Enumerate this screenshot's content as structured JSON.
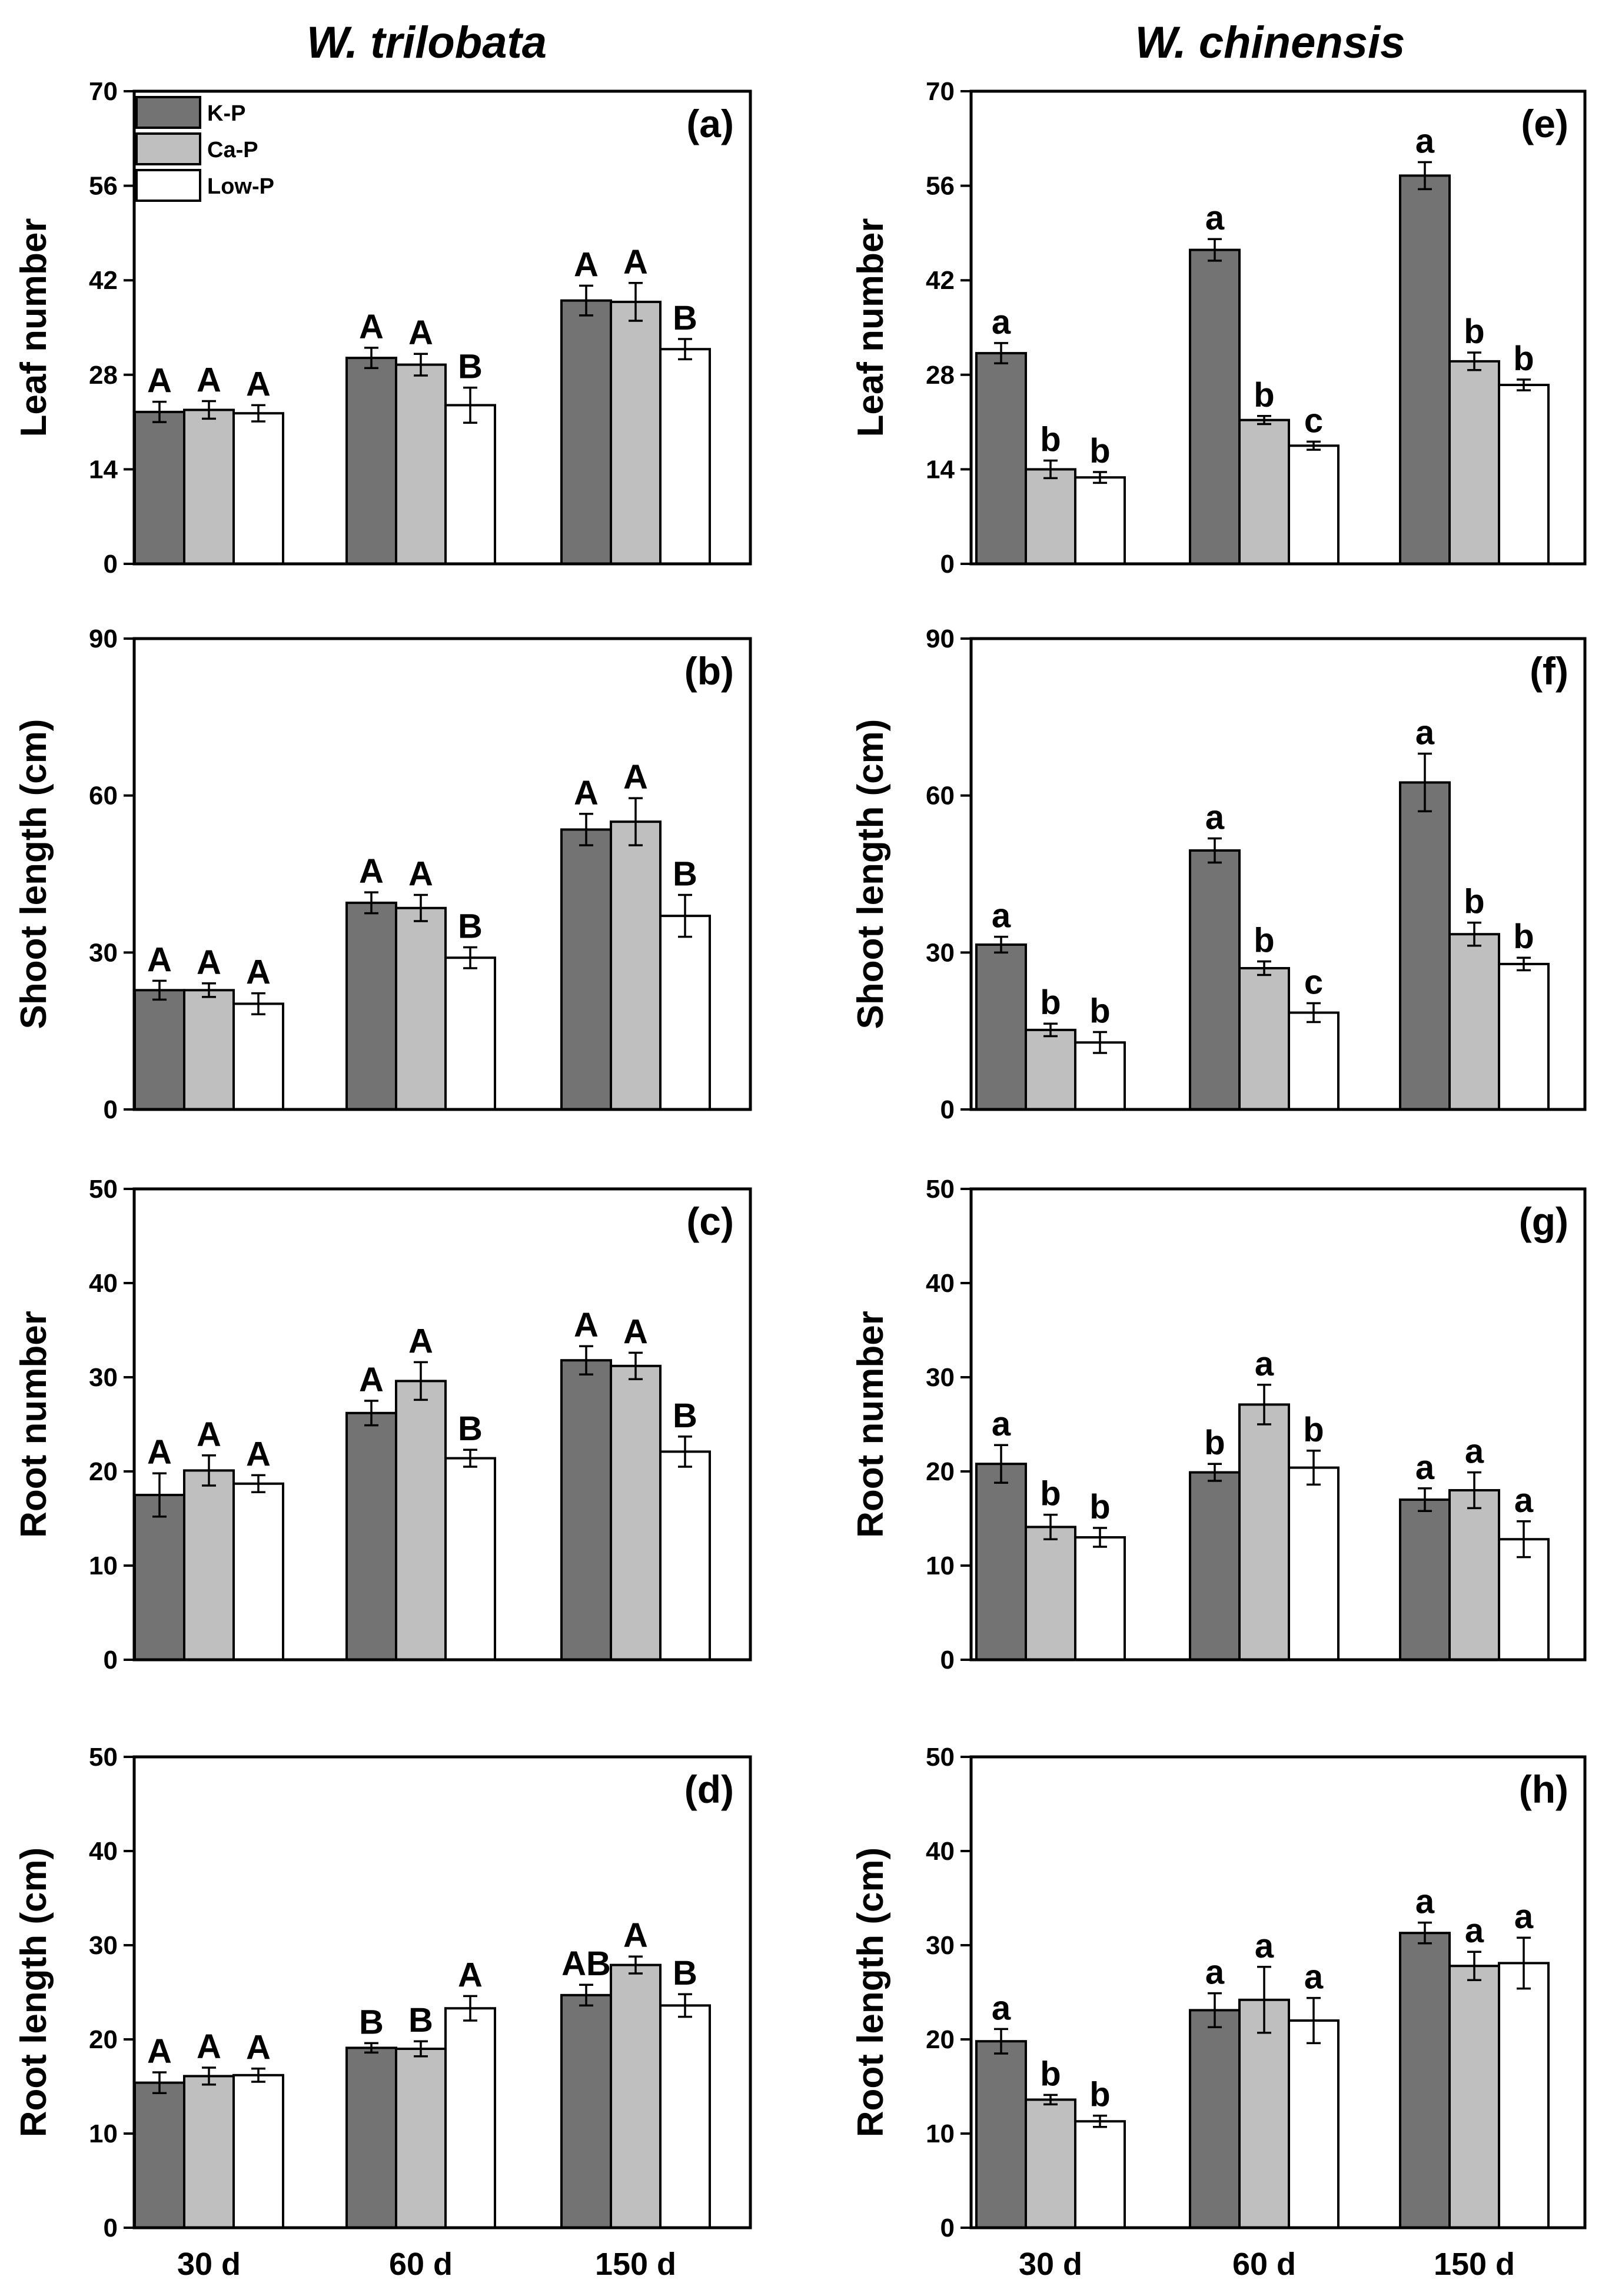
{
  "column_titles": [
    "W. trilobata",
    "W. chinensis"
  ],
  "legend": [
    "K-P",
    "Ca-P",
    "Low-P"
  ],
  "colors": {
    "K-P": "#737373",
    "Ca-P": "#bfbfbf",
    "Low-P": "#ffffff"
  },
  "categories": [
    "30 d",
    "60 d",
    "150 d"
  ],
  "chart_data": [
    {
      "type": "bar",
      "panel": "(a)",
      "species": "W. trilobata",
      "ylabel": "Leaf number",
      "ylim": [
        0,
        70
      ],
      "yticks": [
        0,
        14,
        28,
        42,
        56,
        70
      ],
      "categories": [
        "30 d",
        "60 d",
        "150 d"
      ],
      "series": [
        {
          "name": "K-P",
          "values": [
            22.5,
            30.5,
            39
          ],
          "errors": [
            1.5,
            1.5,
            2.2
          ],
          "letters": [
            "A",
            "A",
            "A"
          ]
        },
        {
          "name": "Ca-P",
          "values": [
            22.8,
            29.5,
            38.8
          ],
          "errors": [
            1.3,
            1.6,
            2.8
          ],
          "letters": [
            "A",
            "A",
            "A"
          ]
        },
        {
          "name": "Low-P",
          "values": [
            22.3,
            23.5,
            31.8
          ],
          "errors": [
            1.2,
            2.6,
            1.5
          ],
          "letters": [
            "A",
            "B",
            "B"
          ]
        }
      ]
    },
    {
      "type": "bar",
      "panel": "(b)",
      "species": "W. trilobata",
      "ylabel": "Shoot length (cm)",
      "ylim": [
        0,
        90
      ],
      "yticks": [
        0,
        30,
        60,
        90
      ],
      "categories": [
        "30 d",
        "60 d",
        "150 d"
      ],
      "series": [
        {
          "name": "K-P",
          "values": [
            22.8,
            39.5,
            53.5
          ],
          "errors": [
            1.8,
            2.0,
            3.0
          ],
          "letters": [
            "A",
            "A",
            "A"
          ]
        },
        {
          "name": "Ca-P",
          "values": [
            22.8,
            38.5,
            55
          ],
          "errors": [
            1.3,
            2.5,
            4.5
          ],
          "letters": [
            "A",
            "A",
            "A"
          ]
        },
        {
          "name": "Low-P",
          "values": [
            20.2,
            29.0,
            37.0
          ],
          "errors": [
            2.0,
            2.0,
            4.0
          ],
          "letters": [
            "A",
            "B",
            "B"
          ]
        }
      ]
    },
    {
      "type": "bar",
      "panel": "(c)",
      "species": "W. trilobata",
      "ylabel": "Root number",
      "ylim": [
        0,
        50
      ],
      "yticks": [
        0,
        10,
        20,
        30,
        40,
        50
      ],
      "categories": [
        "30 d",
        "60 d",
        "150 d"
      ],
      "series": [
        {
          "name": "K-P",
          "values": [
            17.5,
            26.2,
            31.8
          ],
          "errors": [
            2.3,
            1.3,
            1.5
          ],
          "letters": [
            "A",
            "A",
            "A"
          ]
        },
        {
          "name": "Ca-P",
          "values": [
            20.1,
            29.6,
            31.2
          ],
          "errors": [
            1.6,
            2.0,
            1.4
          ],
          "letters": [
            "A",
            "A",
            "A"
          ]
        },
        {
          "name": "Low-P",
          "values": [
            18.7,
            21.4,
            22.1
          ],
          "errors": [
            0.9,
            0.9,
            1.6
          ],
          "letters": [
            "A",
            "B",
            "B"
          ]
        }
      ]
    },
    {
      "type": "bar",
      "panel": "(d)",
      "species": "W. trilobata",
      "ylabel": "Root length (cm)",
      "ylim": [
        0,
        50
      ],
      "yticks": [
        0,
        10,
        20,
        30,
        40,
        50
      ],
      "categories": [
        "30 d",
        "60 d",
        "150 d"
      ],
      "series": [
        {
          "name": "K-P",
          "values": [
            15.4,
            19.1,
            24.7
          ],
          "errors": [
            1.1,
            0.5,
            1.1
          ],
          "letters": [
            "A",
            "B",
            "AB"
          ]
        },
        {
          "name": "Ca-P",
          "values": [
            16.1,
            19.0,
            27.9
          ],
          "errors": [
            0.9,
            0.8,
            0.9
          ],
          "letters": [
            "A",
            "B",
            "A"
          ]
        },
        {
          "name": "Low-P",
          "values": [
            16.2,
            23.3,
            23.6
          ],
          "errors": [
            0.7,
            1.3,
            1.2
          ],
          "letters": [
            "A",
            "A",
            "B"
          ]
        }
      ]
    },
    {
      "type": "bar",
      "panel": "(e)",
      "species": "W. chinensis",
      "ylabel": "Leaf number",
      "ylim": [
        0,
        70
      ],
      "yticks": [
        0,
        14,
        28,
        42,
        56,
        70
      ],
      "categories": [
        "30 d",
        "60 d",
        "150 d"
      ],
      "series": [
        {
          "name": "K-P",
          "values": [
            31.2,
            46.5,
            57.5
          ],
          "errors": [
            1.5,
            1.6,
            2.0
          ],
          "letters": [
            "a",
            "a",
            "a"
          ]
        },
        {
          "name": "Ca-P",
          "values": [
            14.0,
            21.3,
            30.0
          ],
          "errors": [
            1.3,
            0.6,
            1.3
          ],
          "letters": [
            "b",
            "b",
            "b"
          ]
        },
        {
          "name": "Low-P",
          "values": [
            12.8,
            17.5,
            26.5
          ],
          "errors": [
            0.8,
            0.6,
            0.8
          ],
          "letters": [
            "b",
            "c",
            "b"
          ]
        }
      ]
    },
    {
      "type": "bar",
      "panel": "(f)",
      "species": "W. chinensis",
      "ylabel": "Shoot length (cm)",
      "ylim": [
        0,
        90
      ],
      "yticks": [
        0,
        30,
        60,
        90
      ],
      "categories": [
        "30 d",
        "60 d",
        "150 d"
      ],
      "series": [
        {
          "name": "K-P",
          "values": [
            31.5,
            49.5,
            62.5
          ],
          "errors": [
            1.5,
            2.3,
            5.5
          ],
          "letters": [
            "a",
            "a",
            "a"
          ]
        },
        {
          "name": "Ca-P",
          "values": [
            15.2,
            27.0,
            33.5
          ],
          "errors": [
            1.2,
            1.3,
            2.2
          ],
          "letters": [
            "b",
            "b",
            "b"
          ]
        },
        {
          "name": "Low-P",
          "values": [
            12.8,
            18.5,
            27.8
          ],
          "errors": [
            2.0,
            1.8,
            1.2
          ],
          "letters": [
            "b",
            "c",
            "b"
          ]
        }
      ]
    },
    {
      "type": "bar",
      "panel": "(g)",
      "species": "W. chinensis",
      "ylabel": "Root number",
      "ylim": [
        0,
        50
      ],
      "yticks": [
        0,
        10,
        20,
        30,
        40,
        50
      ],
      "categories": [
        "30 d",
        "60 d",
        "150 d"
      ],
      "series": [
        {
          "name": "K-P",
          "values": [
            20.8,
            19.9,
            17.0
          ],
          "errors": [
            2.0,
            0.9,
            1.2
          ],
          "letters": [
            "a",
            "b",
            "a"
          ]
        },
        {
          "name": "Ca-P",
          "values": [
            14.1,
            27.1,
            18.0
          ],
          "errors": [
            1.3,
            2.1,
            1.9
          ],
          "letters": [
            "b",
            "a",
            "a"
          ]
        },
        {
          "name": "Low-P",
          "values": [
            13.0,
            20.4,
            12.8
          ],
          "errors": [
            1.0,
            1.8,
            1.9
          ],
          "letters": [
            "b",
            "b",
            "a"
          ]
        }
      ]
    },
    {
      "type": "bar",
      "panel": "(h)",
      "species": "W. chinensis",
      "ylabel": "Root length (cm)",
      "ylim": [
        0,
        50
      ],
      "yticks": [
        0,
        10,
        20,
        30,
        40,
        50
      ],
      "categories": [
        "30 d",
        "60 d",
        "150 d"
      ],
      "series": [
        {
          "name": "K-P",
          "values": [
            19.8,
            23.1,
            31.3
          ],
          "errors": [
            1.3,
            1.8,
            1.1
          ],
          "letters": [
            "a",
            "a",
            "a"
          ]
        },
        {
          "name": "Ca-P",
          "values": [
            13.6,
            24.2,
            27.8
          ],
          "errors": [
            0.5,
            3.5,
            1.5
          ],
          "letters": [
            "b",
            "a",
            "a"
          ]
        },
        {
          "name": "Low-P",
          "values": [
            11.3,
            22.0,
            28.1
          ],
          "errors": [
            0.6,
            2.4,
            2.7
          ],
          "letters": [
            "b",
            "a",
            "a"
          ]
        }
      ]
    }
  ]
}
